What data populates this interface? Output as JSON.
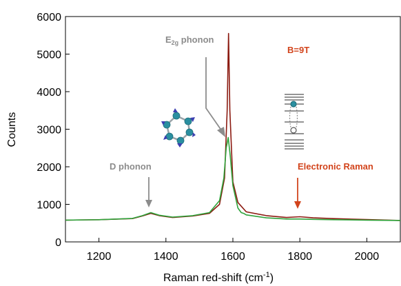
{
  "chart_data": {
    "type": "line",
    "xlabel": "Raman red-shift (cm",
    "xlabel_sup": "-1",
    "xlabel_end": ")",
    "ylabel": "Counts",
    "xlim": [
      1100,
      2100
    ],
    "ylim": [
      0,
      6000
    ],
    "x_ticks": [
      1200,
      1400,
      1600,
      1800,
      2000
    ],
    "y_ticks": [
      0,
      1000,
      2000,
      3000,
      4000,
      5000,
      6000
    ],
    "grid": false,
    "series": [
      {
        "color": "#8b1a10",
        "points": [
          [
            1100,
            580
          ],
          [
            1200,
            590
          ],
          [
            1300,
            620
          ],
          [
            1330,
            690
          ],
          [
            1355,
            760
          ],
          [
            1380,
            700
          ],
          [
            1420,
            650
          ],
          [
            1480,
            690
          ],
          [
            1530,
            760
          ],
          [
            1560,
            1000
          ],
          [
            1575,
            1700
          ],
          [
            1583,
            3500
          ],
          [
            1587,
            5550
          ],
          [
            1591,
            3500
          ],
          [
            1600,
            1600
          ],
          [
            1615,
            1050
          ],
          [
            1640,
            800
          ],
          [
            1700,
            700
          ],
          [
            1760,
            650
          ],
          [
            1800,
            670
          ],
          [
            1840,
            640
          ],
          [
            1900,
            620
          ],
          [
            2000,
            595
          ],
          [
            2100,
            570
          ]
        ]
      },
      {
        "color": "#2ea33a",
        "points": [
          [
            1100,
            580
          ],
          [
            1200,
            590
          ],
          [
            1300,
            625
          ],
          [
            1330,
            700
          ],
          [
            1355,
            780
          ],
          [
            1380,
            710
          ],
          [
            1420,
            660
          ],
          [
            1480,
            700
          ],
          [
            1530,
            780
          ],
          [
            1560,
            1100
          ],
          [
            1573,
            1700
          ],
          [
            1580,
            2500
          ],
          [
            1586,
            2780
          ],
          [
            1592,
            2300
          ],
          [
            1600,
            1500
          ],
          [
            1615,
            900
          ],
          [
            1625,
            780
          ],
          [
            1632,
            760
          ],
          [
            1640,
            720
          ],
          [
            1700,
            640
          ],
          [
            1760,
            610
          ],
          [
            1800,
            610
          ],
          [
            1840,
            600
          ],
          [
            1900,
            590
          ],
          [
            2000,
            580
          ],
          [
            2100,
            570
          ]
        ]
      }
    ],
    "annotations": [
      {
        "text_main": "E",
        "text_sub": "2g",
        "text_rest": " phonon",
        "color": "#8c8c8c"
      },
      {
        "text": "D phonon",
        "color": "#8c8c8c"
      },
      {
        "text": "B=9T",
        "color": "#d2441c"
      },
      {
        "text": "Electronic Raman",
        "color": "#d2441c"
      }
    ]
  }
}
